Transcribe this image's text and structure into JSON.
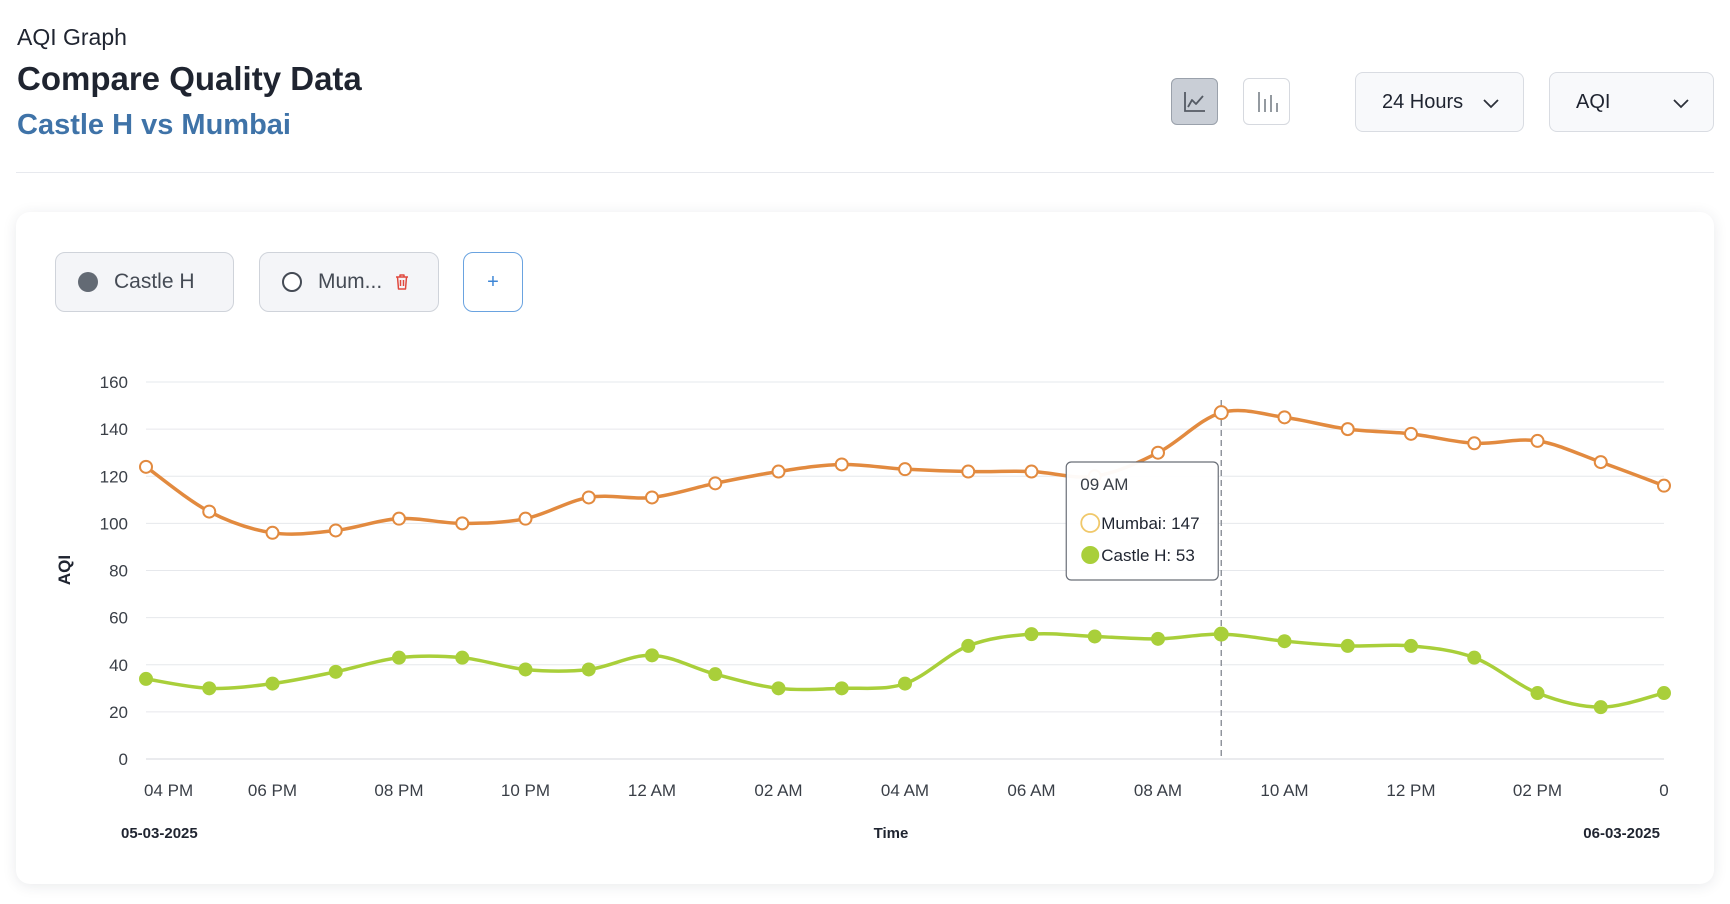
{
  "header": {
    "small_label": "AQI Graph",
    "title": "Compare Quality Data",
    "subtitle": "Castle H vs Mumbai",
    "icons": {
      "line": "line-chart-icon",
      "bar": "bar-chart-icon",
      "chevron": "chevron-down-icon",
      "trash": "trash-icon"
    },
    "range_dropdown": "24 Hours",
    "metric_dropdown": "AQI"
  },
  "chips": {
    "castle": "Castle H",
    "mumbai": "Mum...",
    "add": "+"
  },
  "tooltip": {
    "time": "09 AM",
    "mumbai": "Mumbai: 147",
    "castle": "Castle H: 53"
  },
  "chart_data": {
    "type": "line",
    "title": "",
    "xlabel": "Time",
    "ylabel": "AQI",
    "ylim": [
      0,
      160
    ],
    "yticks": [
      0,
      20,
      40,
      60,
      80,
      100,
      120,
      140,
      160
    ],
    "x_tick_labels": [
      "04 PM",
      "06 PM",
      "08 PM",
      "10 PM",
      "12 AM",
      "02 AM",
      "04 AM",
      "06 AM",
      "08 AM",
      "10 AM",
      "12 PM",
      "02 PM",
      "0"
    ],
    "date_labels": {
      "start": "05-03-2025",
      "end": "06-03-2025"
    },
    "grid": true,
    "tooltip_index": 17,
    "colors": {
      "mumbai": "#e28a3f",
      "castle": "#a9cf3a",
      "grid": "#e6e8ec",
      "axis_text": "#3a3f47"
    },
    "series": [
      {
        "name": "Mumbai",
        "style": "hollow",
        "values": [
          124,
          105,
          96,
          97,
          102,
          100,
          102,
          111,
          111,
          117,
          122,
          125,
          123,
          122,
          122,
          120,
          130,
          147,
          145,
          140,
          138,
          134,
          135,
          126,
          116
        ]
      },
      {
        "name": "Castle H",
        "style": "filled",
        "values": [
          34,
          30,
          32,
          37,
          43,
          43,
          38,
          38,
          44,
          36,
          30,
          30,
          32,
          48,
          53,
          52,
          51,
          53,
          50,
          48,
          48,
          43,
          28,
          22,
          28
        ]
      }
    ]
  }
}
